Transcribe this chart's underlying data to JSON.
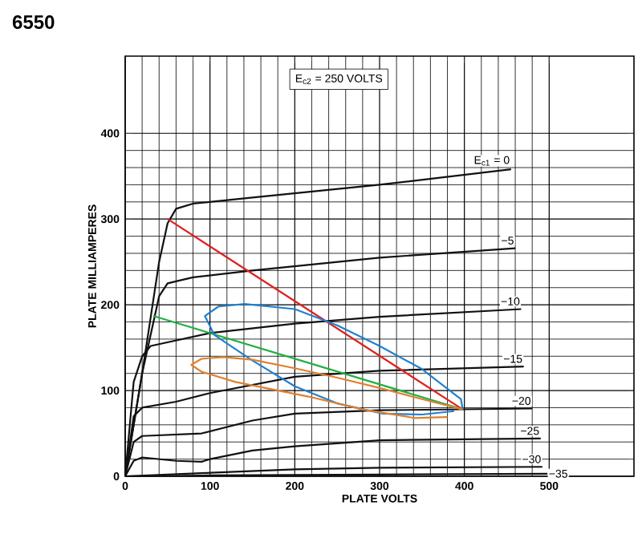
{
  "chart_data": {
    "type": "line",
    "title": "6550",
    "xlabel": "PLATE VOLTS",
    "ylabel": "PLATE MILLIAMPERES",
    "annotations": [
      "E$_{c2}$ = 250 VOLTS"
    ],
    "xlim": [
      0,
      600
    ],
    "ylim": [
      0,
      490
    ],
    "xticks": [
      0,
      100,
      200,
      300,
      400,
      500
    ],
    "yticks": [
      0,
      100,
      200,
      300,
      400
    ],
    "grid": true,
    "marker": "none",
    "line_style": "solid",
    "series": [
      {
        "name": "E$_{c1}$ = 0",
        "color": "#111111",
        "x": [
          0,
          20,
          40,
          50,
          60,
          80,
          150,
          300,
          455
        ],
        "values": [
          0,
          120,
          250,
          295,
          312,
          318,
          325,
          340,
          358
        ]
      },
      {
        "name": "−5",
        "color": "#111111",
        "x": [
          0,
          20,
          40,
          50,
          80,
          150,
          300,
          460
        ],
        "values": [
          0,
          120,
          210,
          225,
          232,
          240,
          255,
          266
        ]
      },
      {
        "name": "−10",
        "color": "#111111",
        "x": [
          0,
          10,
          20,
          30,
          100,
          200,
          300,
          467
        ],
        "values": [
          0,
          110,
          140,
          152,
          167,
          178,
          186,
          195
        ]
      },
      {
        "name": "−15",
        "color": "#111111",
        "x": [
          0,
          10,
          20,
          60,
          100,
          200,
          300,
          470
        ],
        "values": [
          0,
          70,
          80,
          87,
          97,
          116,
          123,
          128
        ]
      },
      {
        "name": "−20",
        "color": "#111111",
        "x": [
          0,
          10,
          20,
          90,
          150,
          200,
          300,
          480
        ],
        "values": [
          0,
          40,
          47,
          50,
          65,
          73,
          77,
          79
        ]
      },
      {
        "name": "−25",
        "color": "#111111",
        "x": [
          0,
          10,
          20,
          60,
          90,
          100,
          150,
          200,
          300,
          490
        ],
        "values": [
          0,
          18,
          22,
          18,
          17,
          20,
          30,
          35,
          42,
          44
        ]
      },
      {
        "name": "−30",
        "color": "#111111",
        "x": [
          0,
          50,
          100,
          200,
          300,
          492
        ],
        "values": [
          0,
          2,
          4,
          8,
          10,
          11
        ]
      },
      {
        "name": "−35",
        "color": "#111111",
        "x": [
          0,
          100,
          300,
          498
        ],
        "values": [
          0,
          1,
          2,
          3
        ]
      },
      {
        "color": "#e02020",
        "x": [
          50,
          398
        ],
        "values": [
          300,
          78
        ]
      },
      {
        "color": "#20b040",
        "x": [
          33,
          398
        ],
        "values": [
          187,
          78
        ]
      },
      {
        "color": "#2080d0",
        "x": [
          398,
          396,
          350,
          300,
          250,
          200,
          141,
          110,
          94,
          105,
          150,
          200,
          250,
          304,
          350,
          388
        ],
        "values": [
          78,
          90,
          125,
          152,
          176,
          195,
          201,
          198,
          187,
          165,
          135,
          105,
          85,
          73,
          72,
          76
        ]
      },
      {
        "color": "#e08030",
        "x": [
          398,
          350,
          300,
          250,
          200,
          150,
          116,
          90,
          78,
          90,
          130,
          216,
          280,
          341,
          380
        ],
        "values": [
          78,
          90,
          103,
          115,
          126,
          136,
          139,
          137,
          130,
          122,
          110,
          93,
          78,
          68,
          69
        ]
      }
    ]
  }
}
